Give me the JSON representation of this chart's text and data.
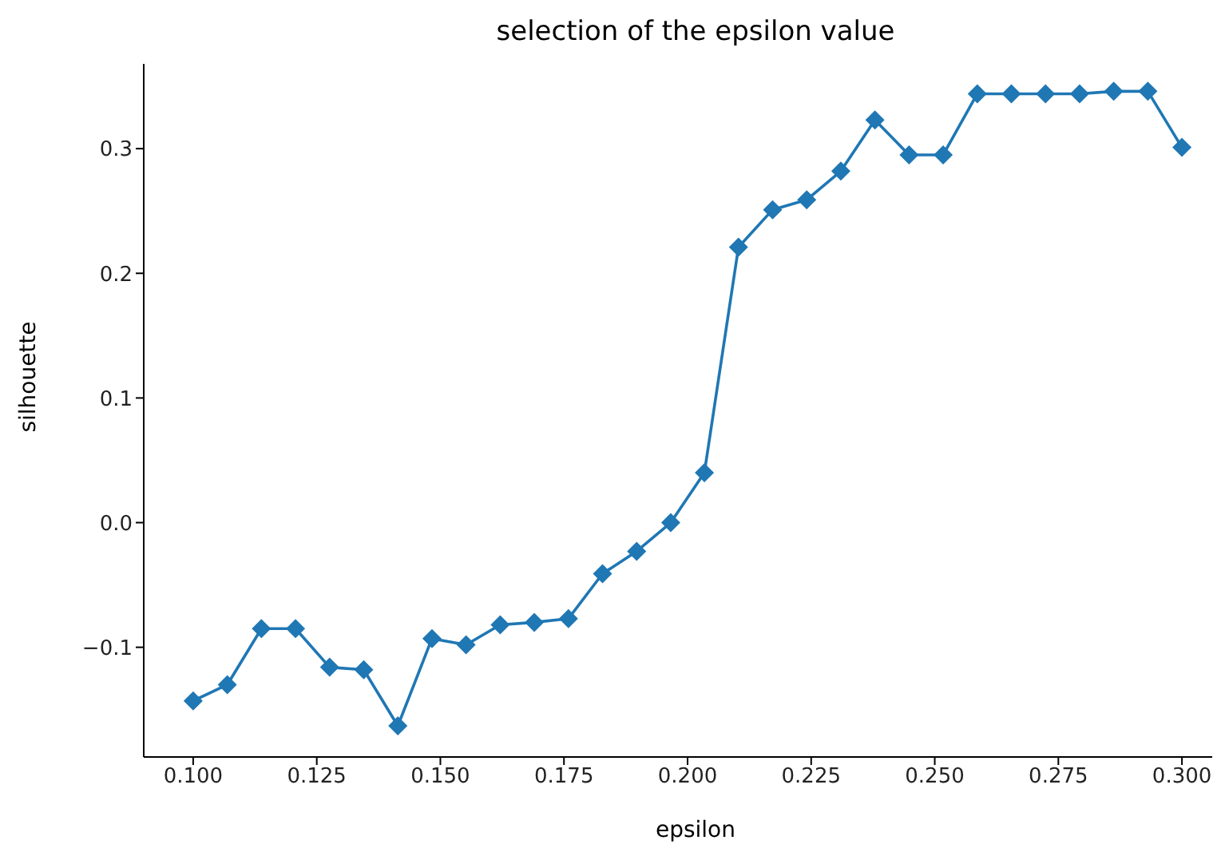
{
  "chart_data": {
    "type": "line",
    "title": "selection of the epsilon value",
    "xlabel": "epsilon",
    "ylabel": "silhouette",
    "x": [
      0.1,
      0.1069,
      0.1138,
      0.1207,
      0.1276,
      0.1345,
      0.1414,
      0.1483,
      0.1552,
      0.1621,
      0.169,
      0.1759,
      0.1828,
      0.1897,
      0.1966,
      0.2034,
      0.2103,
      0.2172,
      0.2241,
      0.231,
      0.2379,
      0.2448,
      0.2517,
      0.2586,
      0.2655,
      0.2724,
      0.2793,
      0.2862,
      0.2931,
      0.3
    ],
    "series": [
      {
        "color": "#1f77b4",
        "values": [
          -0.143,
          -0.13,
          -0.085,
          -0.085,
          -0.116,
          -0.118,
          -0.163,
          -0.093,
          -0.098,
          -0.082,
          -0.08,
          -0.077,
          -0.041,
          -0.023,
          0.0,
          0.04,
          0.221,
          0.251,
          0.259,
          0.282,
          0.323,
          0.295,
          0.295,
          0.344,
          0.344,
          0.344,
          0.344,
          0.346,
          0.346,
          0.301
        ]
      }
    ],
    "xlim": [
      0.09,
      0.31
    ],
    "xticks": [
      {
        "value": 0.1,
        "label": "0.100"
      },
      {
        "value": 0.125,
        "label": "0.125"
      },
      {
        "value": 0.15,
        "label": "0.150"
      },
      {
        "value": 0.175,
        "label": "0.175"
      },
      {
        "value": 0.2,
        "label": "0.200"
      },
      {
        "value": 0.225,
        "label": "0.225"
      },
      {
        "value": 0.25,
        "label": "0.250"
      },
      {
        "value": 0.275,
        "label": "0.275"
      },
      {
        "value": 0.3,
        "label": "0.300"
      }
    ],
    "ylim": [
      -0.188,
      0.368
    ],
    "yticks": [
      {
        "value": -0.1,
        "label": "−0.1"
      },
      {
        "value": 0,
        "label": "0.0"
      },
      {
        "value": 0.1,
        "label": "0.1"
      },
      {
        "value": 0.2,
        "label": "0.2"
      },
      {
        "value": 0.3,
        "label": "0.3"
      }
    ],
    "marker": "diamond",
    "line_style": "solid",
    "grid": false,
    "legend": false
  }
}
